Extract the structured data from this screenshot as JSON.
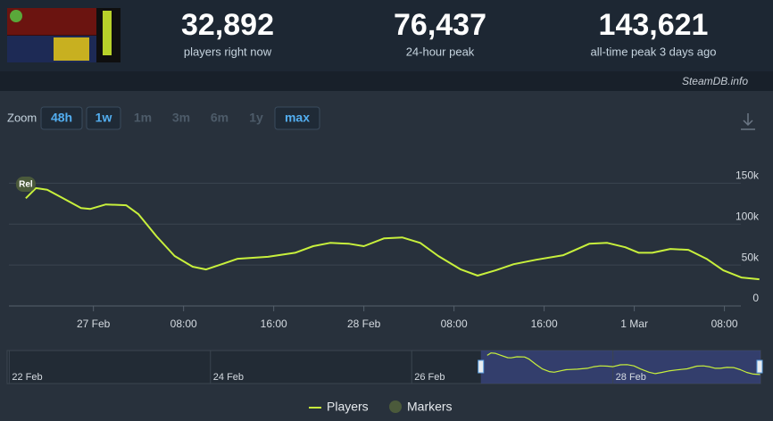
{
  "header": {
    "stats": [
      {
        "value": "32,892",
        "label": "players right now"
      },
      {
        "value": "76,437",
        "label": "24-hour peak"
      },
      {
        "value": "143,621",
        "label": "all-time peak 3 days ago"
      }
    ],
    "credit": "SteamDB.info"
  },
  "zoom": {
    "label": "Zoom",
    "options": [
      "48h",
      "1w",
      "1m",
      "3m",
      "6m",
      "1y",
      "max"
    ],
    "active": [
      true,
      true,
      false,
      false,
      false,
      false,
      true
    ]
  },
  "chart_data": {
    "type": "line",
    "x": [
      -6,
      -5.1,
      -4.1,
      -2.7,
      -1.1,
      -0.3,
      1.1,
      2.9,
      4.0,
      5.6,
      7.2,
      8.8,
      10,
      11.6,
      12.8,
      15.5,
      17.9,
      19.5,
      21,
      22.7,
      24,
      25.8,
      27.4,
      29,
      30.6,
      32.6,
      34.1,
      35.7,
      37.3,
      39.3,
      41.7,
      44,
      45.6,
      47.2,
      48.4,
      49.6,
      51.2,
      52.8,
      54.4,
      55.9,
      57.5,
      59.1
    ],
    "series": [
      {
        "name": "Players",
        "color": "#c8f03c",
        "values": [
          131500,
          144000,
          142000,
          131500,
          119600,
          118500,
          124000,
          123000,
          112000,
          85000,
          61000,
          48000,
          44600,
          52000,
          57600,
          60000,
          65000,
          73000,
          77000,
          76000,
          73000,
          82600,
          83700,
          77000,
          61000,
          44600,
          37000,
          43500,
          51000,
          56500,
          62000,
          76000,
          77000,
          71700,
          65000,
          65000,
          69600,
          68500,
          57600,
          43500,
          34800,
          32600
        ]
      }
    ],
    "markers": {
      "name": "Markers",
      "color": "#4b5a3b"
    },
    "annotations": [
      {
        "text": "Rel",
        "x": -6
      }
    ],
    "xlim": [
      -7.5,
      59.2
    ],
    "xticks": [
      {
        "value": 0,
        "label": "27 Feb"
      },
      {
        "value": 8,
        "label": "08:00"
      },
      {
        "value": 16,
        "label": "16:00"
      },
      {
        "value": 24,
        "label": "28 Feb"
      },
      {
        "value": 32,
        "label": "08:00"
      },
      {
        "value": 40,
        "label": "16:00"
      },
      {
        "value": 48,
        "label": "1 Mar"
      },
      {
        "value": 56,
        "label": "08:00"
      }
    ],
    "ylim": [
      0,
      170000
    ],
    "yticks": [
      0,
      {
        "value": 50000,
        "label": "50k"
      },
      {
        "value": 100000,
        "label": "100k"
      },
      {
        "value": 150000,
        "label": "150k"
      }
    ],
    "grid": true,
    "navigator": {
      "xlim": [
        -120.5,
        59.2
      ],
      "xticks": [
        {
          "value": -120,
          "label": "22 Feb"
        },
        {
          "value": -72,
          "label": "24 Feb"
        },
        {
          "value": -24,
          "label": "26 Feb"
        },
        {
          "value": 24,
          "label": "28 Feb"
        }
      ]
    }
  }
}
